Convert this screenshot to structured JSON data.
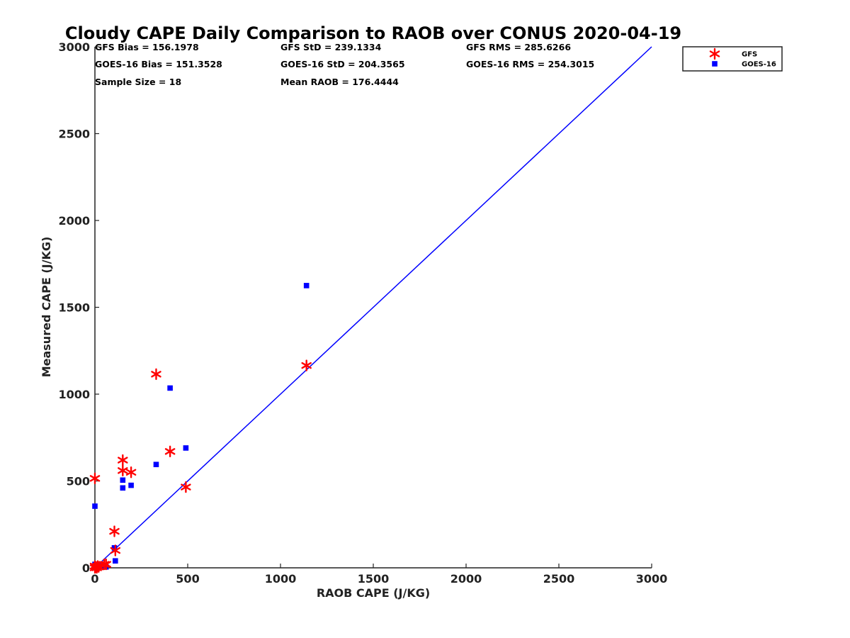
{
  "chart_data": {
    "type": "scatter",
    "title": "Cloudy CAPE Daily Comparison to RAOB over CONUS 2020-04-19",
    "xlabel": "RAOB CAPE (J/KG)",
    "ylabel": "Measured CAPE (J/KG)",
    "xlim": [
      0,
      3000
    ],
    "ylim": [
      0,
      3000
    ],
    "x_ticks": [
      "0",
      "500",
      "1000",
      "1500",
      "2000",
      "2500",
      "3000"
    ],
    "y_ticks": [
      "0",
      "500",
      "1000",
      "1500",
      "2000",
      "2500",
      "3000"
    ],
    "grid": false,
    "legend_position": "top-right, outside plot area",
    "reference_line": {
      "type": "one-to-one",
      "from": [
        0,
        0
      ],
      "to": [
        3000,
        3000
      ],
      "color": "#0000ff"
    },
    "stats": [
      [
        "GFS Bias = 156.1978",
        "GFS StD = 239.1334",
        "GFS RMS = 285.6266"
      ],
      [
        "GOES-16 Bias = 151.3528",
        "GOES-16 StD = 204.3565",
        "GOES-16 RMS = 254.3015"
      ],
      [
        "Sample Size = 18",
        "Mean RAOB = 176.4444",
        ""
      ]
    ],
    "series": [
      {
        "name": "GFS",
        "marker": "asterisk",
        "color": "#ff0000",
        "points": [
          [
            0,
            515
          ],
          [
            0,
            10
          ],
          [
            5,
            5
          ],
          [
            10,
            0
          ],
          [
            15,
            10
          ],
          [
            50,
            20
          ],
          [
            60,
            20
          ],
          [
            105,
            210
          ],
          [
            110,
            100
          ],
          [
            150,
            620
          ],
          [
            150,
            560
          ],
          [
            195,
            550
          ],
          [
            330,
            1115
          ],
          [
            405,
            670
          ],
          [
            490,
            465
          ],
          [
            1140,
            1165
          ],
          [
            20,
            5
          ],
          [
            0,
            0
          ]
        ]
      },
      {
        "name": "GOES-16",
        "marker": "square",
        "color": "#0000ff",
        "points": [
          [
            0,
            355
          ],
          [
            0,
            20
          ],
          [
            5,
            10
          ],
          [
            10,
            0
          ],
          [
            15,
            5
          ],
          [
            55,
            10
          ],
          [
            105,
            115
          ],
          [
            110,
            40
          ],
          [
            150,
            505
          ],
          [
            150,
            460
          ],
          [
            195,
            475
          ],
          [
            330,
            595
          ],
          [
            405,
            1035
          ],
          [
            490,
            690
          ],
          [
            1140,
            1625
          ],
          [
            20,
            10
          ],
          [
            0,
            5
          ],
          [
            60,
            5
          ]
        ]
      }
    ]
  }
}
